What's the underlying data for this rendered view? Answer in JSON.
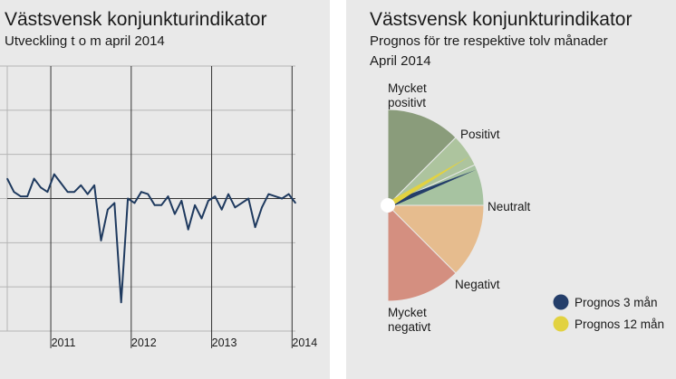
{
  "left_panel": {
    "title": "Västsvensk konjunkturindikator",
    "subtitle": "Utveckling t o m april 2014"
  },
  "right_panel": {
    "title": "Västsvensk konjunkturindikator",
    "subtitle_line1": "Prognos för tre respektive tolv månader",
    "subtitle_line2": "April 2014"
  },
  "colors": {
    "line": "#1f3a5f",
    "grid": "#b5b5b5",
    "very_positive": "#8a9c7b",
    "positive": "#adc49e",
    "neutral": "#a7c3a1",
    "negative": "#e6bc8e",
    "very_negative": "#d48f80",
    "prognos_3": "#243e6a",
    "prognos_12": "#e2d241"
  },
  "chart_data": [
    {
      "type": "line",
      "title": "Västsvensk konjunkturindikator",
      "subtitle": "Utveckling t o m april 2014",
      "x_tick_labels": [
        "2011",
        "2012",
        "2013",
        "2014"
      ],
      "ylim": [
        -3,
        3
      ],
      "grid": true,
      "series": [
        {
          "values": [
            0.45,
            0.15,
            0.05,
            0.05,
            0.45,
            0.25,
            0.15,
            0.55,
            0.35,
            0.15,
            0.15,
            0.3,
            0.1,
            0.3,
            -0.95,
            -0.25,
            -0.1,
            -2.35,
            0.0,
            -0.1,
            0.15,
            0.1,
            -0.15,
            -0.15,
            0.05,
            -0.35,
            -0.05,
            -0.7,
            -0.15,
            -0.45,
            -0.05,
            0.05,
            -0.25,
            0.1,
            -0.2,
            -0.1,
            0.0,
            -0.65,
            -0.2,
            0.1,
            0.05,
            0.0,
            0.1,
            -0.1
          ]
        }
      ]
    },
    {
      "type": "pie",
      "title": "Västsvensk konjunkturindikator",
      "subtitle": "Prognos för tre respektive tolv månader",
      "segments": [
        {
          "label_line1": "Mycket",
          "label_line2": "positivt",
          "start_deg": 90,
          "end_deg": 45,
          "color_key": "very_positive"
        },
        {
          "label_line1": "Positivt",
          "label_line2": "",
          "start_deg": 45,
          "end_deg": 25,
          "color_key": "positive"
        },
        {
          "label_line1": "Neutralt",
          "label_line2": "",
          "start_deg": 25,
          "end_deg": 0,
          "color_key": "neutral"
        },
        {
          "label_line1": "Negativt",
          "label_line2": "",
          "start_deg": 0,
          "end_deg": -45,
          "color_key": "negative"
        },
        {
          "label_line1": "Mycket",
          "label_line2": "negativt",
          "start_deg": -45,
          "end_deg": -90,
          "color_key": "very_negative"
        }
      ],
      "pointers": [
        {
          "name": "Prognos 3 mån",
          "angle_deg": 22,
          "color_key": "prognos_3"
        },
        {
          "name": "Prognos 12 mån",
          "angle_deg": 31,
          "color_key": "prognos_12"
        }
      ]
    }
  ]
}
